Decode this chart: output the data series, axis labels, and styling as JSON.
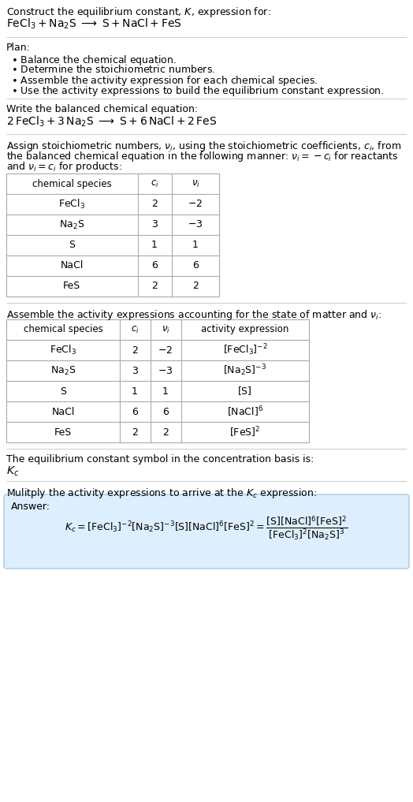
{
  "bg_color": "#ffffff",
  "separator_color": "#cccccc",
  "table_border_color": "#aaaaaa",
  "answer_box_bg": "#ddeeff",
  "answer_box_border": "#aaccdd",
  "section1_line1": "Construct the equilibrium constant, $K$, expression for:",
  "section1_line2": "$\\mathrm{FeCl_3 + Na_2S \\;\\longrightarrow\\; S + NaCl + FeS}$",
  "plan_header": "Plan:",
  "plan_items": [
    "$\\bullet$ Balance the chemical equation.",
    "$\\bullet$ Determine the stoichiometric numbers.",
    "$\\bullet$ Assemble the activity expression for each chemical species.",
    "$\\bullet$ Use the activity expressions to build the equilibrium constant expression."
  ],
  "section3_header": "Write the balanced chemical equation:",
  "section3_eq": "$\\mathrm{2\\,FeCl_3 + 3\\,Na_2S \\;\\longrightarrow\\; S + 6\\,NaCl + 2\\,FeS}$",
  "section4_text_lines": [
    "Assign stoichiometric numbers, $\\nu_i$, using the stoichiometric coefficients, $c_i$, from",
    "the balanced chemical equation in the following manner: $\\nu_i = -c_i$ for reactants",
    "and $\\nu_i = c_i$ for products:"
  ],
  "table1_headers": [
    "chemical species",
    "$c_i$",
    "$\\nu_i$"
  ],
  "table1_rows": [
    [
      "$\\mathrm{FeCl_3}$",
      "2",
      "$-2$"
    ],
    [
      "$\\mathrm{Na_2S}$",
      "3",
      "$-3$"
    ],
    [
      "S",
      "1",
      "1"
    ],
    [
      "NaCl",
      "6",
      "6"
    ],
    [
      "FeS",
      "2",
      "2"
    ]
  ],
  "section5_text": "Assemble the activity expressions accounting for the state of matter and $\\nu_i$:",
  "table2_headers": [
    "chemical species",
    "$c_i$",
    "$\\nu_i$",
    "activity expression"
  ],
  "table2_rows": [
    [
      "$\\mathrm{FeCl_3}$",
      "2",
      "$-2$",
      "$[\\mathrm{FeCl_3}]^{-2}$"
    ],
    [
      "$\\mathrm{Na_2S}$",
      "3",
      "$-3$",
      "$[\\mathrm{Na_2S}]^{-3}$"
    ],
    [
      "S",
      "1",
      "1",
      "[S]"
    ],
    [
      "NaCl",
      "6",
      "6",
      "$[\\mathrm{NaCl}]^6$"
    ],
    [
      "FeS",
      "2",
      "2",
      "$[\\mathrm{FeS}]^2$"
    ]
  ],
  "section6_text": "The equilibrium constant symbol in the concentration basis is:",
  "section6_symbol": "$K_c$",
  "section7_text": "Mulitply the activity expressions to arrive at the $K_c$ expression:",
  "answer_label": "Answer:",
  "kc_full_expr": "$K_c = [\\mathrm{FeCl_3}]^{-2}[\\mathrm{Na_2S}]^{-3}[\\mathrm{S}][\\mathrm{NaCl}]^6[\\mathrm{FeS}]^2 = \\dfrac{[\\mathrm{S}][\\mathrm{NaCl}]^6[\\mathrm{FeS}]^2}{[\\mathrm{FeCl_3}]^2[\\mathrm{Na_2S}]^3}$",
  "fig_width": 5.24,
  "fig_height": 10.17,
  "dpi": 100
}
